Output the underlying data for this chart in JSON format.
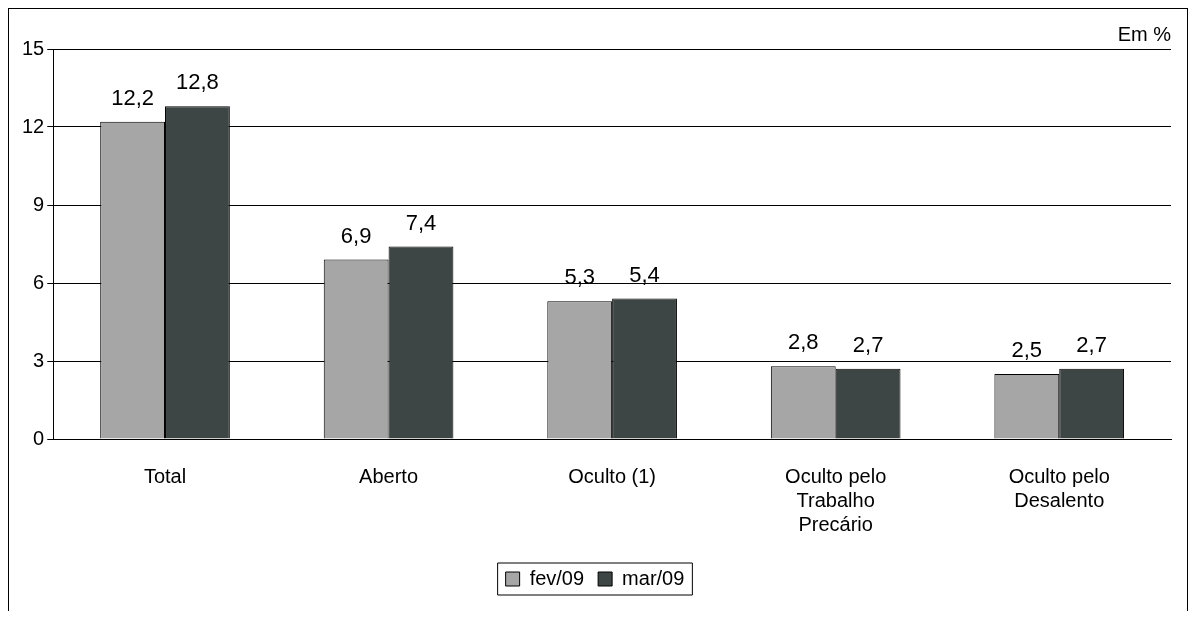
{
  "chart_data": {
    "type": "bar",
    "ylabel": "Em %",
    "categories": [
      "Total",
      "Aberto",
      "Oculto (1)",
      "Oculto pelo Trabalho Precário",
      "Oculto pelo Desalento"
    ],
    "series": [
      {
        "name": "fev/09",
        "color": "#a6a6a6",
        "values": [
          12.2,
          6.9,
          5.3,
          2.8,
          2.5
        ],
        "value_labels": [
          "12,2",
          "6,9",
          "5,3",
          "2,8",
          "2,5"
        ]
      },
      {
        "name": "mar/09",
        "color": "#3e4645",
        "values": [
          12.8,
          7.4,
          5.4,
          2.7,
          2.7
        ],
        "value_labels": [
          "12,8",
          "7,4",
          "5,4",
          "2,7",
          "2,7"
        ]
      }
    ],
    "ylim": [
      0,
      15
    ],
    "yticks": [
      0,
      3,
      6,
      9,
      12,
      15
    ],
    "grid": "y",
    "legend": "bottom"
  }
}
